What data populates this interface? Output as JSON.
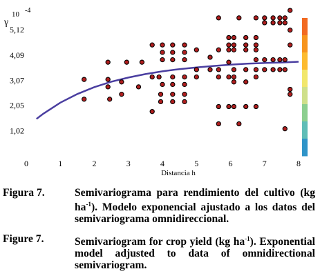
{
  "chart_data": {
    "type": "scatter",
    "ylabel_symbol": "γ",
    "y_multiplier": "10",
    "y_multiplier_exp": "-4",
    "xlabel": "Distancia h",
    "xlim": [
      0,
      8
    ],
    "ylim": [
      0,
      6.1
    ],
    "x_ticks": [
      "0",
      "1",
      "2",
      "3",
      "4",
      "5",
      "6",
      "7",
      "8"
    ],
    "y_ticks": [
      "1,02",
      "2,05",
      "3,07",
      "4,09",
      "5,12"
    ],
    "y_tick_values": [
      1.02,
      2.05,
      3.07,
      4.09,
      5.12
    ],
    "grid": false,
    "points": [
      [
        1.7,
        3.1
      ],
      [
        1.7,
        2.3
      ],
      [
        2.4,
        3.1
      ],
      [
        2.4,
        3.8
      ],
      [
        2.4,
        2.8
      ],
      [
        2.45,
        2.3
      ],
      [
        2.8,
        3.0
      ],
      [
        2.8,
        2.5
      ],
      [
        2.95,
        3.8
      ],
      [
        3.3,
        2.8
      ],
      [
        3.4,
        3.8
      ],
      [
        3.7,
        4.5
      ],
      [
        3.7,
        3.2
      ],
      [
        3.7,
        1.8
      ],
      [
        3.9,
        3.2
      ],
      [
        3.95,
        2.5
      ],
      [
        3.95,
        2.2
      ],
      [
        4.0,
        4.5
      ],
      [
        4.0,
        4.2
      ],
      [
        4.0,
        3.9
      ],
      [
        4.0,
        2.9
      ],
      [
        4.3,
        4.5
      ],
      [
        4.3,
        4.2
      ],
      [
        4.3,
        3.9
      ],
      [
        4.3,
        3.2
      ],
      [
        4.3,
        2.9
      ],
      [
        4.3,
        2.5
      ],
      [
        4.3,
        2.2
      ],
      [
        4.65,
        4.5
      ],
      [
        4.65,
        4.2
      ],
      [
        4.65,
        3.9
      ],
      [
        4.65,
        3.2
      ],
      [
        4.65,
        2.9
      ],
      [
        4.65,
        2.5
      ],
      [
        4.65,
        2.2
      ],
      [
        5.0,
        4.3
      ],
      [
        5.0,
        3.5
      ],
      [
        5.0,
        3.2
      ],
      [
        5.4,
        4.0
      ],
      [
        5.4,
        3.5
      ],
      [
        5.65,
        5.6
      ],
      [
        5.65,
        4.3
      ],
      [
        5.65,
        3.5
      ],
      [
        5.65,
        3.2
      ],
      [
        5.65,
        2.0
      ],
      [
        5.65,
        1.3
      ],
      [
        5.95,
        4.8
      ],
      [
        5.95,
        4.5
      ],
      [
        5.95,
        4.3
      ],
      [
        5.95,
        3.8
      ],
      [
        5.95,
        3.2
      ],
      [
        5.95,
        2.0
      ],
      [
        6.1,
        4.8
      ],
      [
        6.1,
        4.5
      ],
      [
        6.1,
        4.3
      ],
      [
        6.1,
        3.5
      ],
      [
        6.1,
        3.2
      ],
      [
        6.1,
        3.0
      ],
      [
        6.1,
        2.0
      ],
      [
        6.25,
        5.6
      ],
      [
        6.25,
        1.3
      ],
      [
        6.45,
        4.8
      ],
      [
        6.45,
        4.5
      ],
      [
        6.45,
        4.3
      ],
      [
        6.45,
        3.5
      ],
      [
        6.45,
        3.0
      ],
      [
        6.45,
        2.0
      ],
      [
        6.75,
        5.6
      ],
      [
        6.75,
        4.8
      ],
      [
        6.75,
        4.5
      ],
      [
        6.75,
        4.3
      ],
      [
        6.75,
        3.9
      ],
      [
        6.75,
        3.5
      ],
      [
        6.75,
        3.2
      ],
      [
        6.75,
        2.0
      ],
      [
        7.0,
        5.6
      ],
      [
        7.0,
        5.4
      ],
      [
        7.0,
        3.9
      ],
      [
        7.0,
        3.5
      ],
      [
        7.25,
        5.6
      ],
      [
        7.25,
        5.4
      ],
      [
        7.25,
        3.9
      ],
      [
        7.25,
        3.5
      ],
      [
        7.45,
        5.6
      ],
      [
        7.45,
        5.4
      ],
      [
        7.45,
        3.9
      ],
      [
        7.45,
        3.5
      ],
      [
        7.6,
        5.6
      ],
      [
        7.6,
        5.4
      ],
      [
        7.6,
        3.9
      ],
      [
        7.6,
        3.5
      ],
      [
        7.6,
        1.1
      ],
      [
        7.75,
        5.9
      ],
      [
        7.75,
        5.1
      ],
      [
        7.75,
        4.5
      ],
      [
        7.75,
        2.7
      ],
      [
        7.75,
        2.5
      ]
    ],
    "model": {
      "name": "Modelo exponencial",
      "curve_x": [
        0.3,
        0.5,
        1.0,
        1.5,
        2.0,
        2.5,
        3.0,
        3.5,
        4.0,
        4.5,
        5.0,
        5.5,
        6.0,
        6.5,
        7.0,
        7.5,
        8.0
      ],
      "curve_y": [
        1.5,
        1.71,
        2.16,
        2.51,
        2.79,
        3.01,
        3.18,
        3.32,
        3.43,
        3.52,
        3.59,
        3.65,
        3.7,
        3.74,
        3.77,
        3.79,
        3.82
      ]
    },
    "color_bar": [
      "#f26a21",
      "#f7941d",
      "#fdbb2f",
      "#f2e76b",
      "#cfe08a",
      "#8ccf8f",
      "#5fbdb7",
      "#2f94c8"
    ],
    "colors": {
      "point_fill": "#b01e1e",
      "curve": "#4a3ea0"
    }
  },
  "captions": {
    "es_label": "Figura 7.",
    "es_text": "Semivariograma para rendimiento del cultivo (kg ha",
    "es_sup": "-1",
    "es_text2": "). Modelo exponencial ajustado a los datos del semivariograma omnidireccional.",
    "en_label": "Figure 7.",
    "en_text": "Semivariogram for crop yield (kg ha",
    "en_sup": "-1",
    "en_text2": "). Exponential model adjusted to data of omnidirectional semivariogram."
  }
}
